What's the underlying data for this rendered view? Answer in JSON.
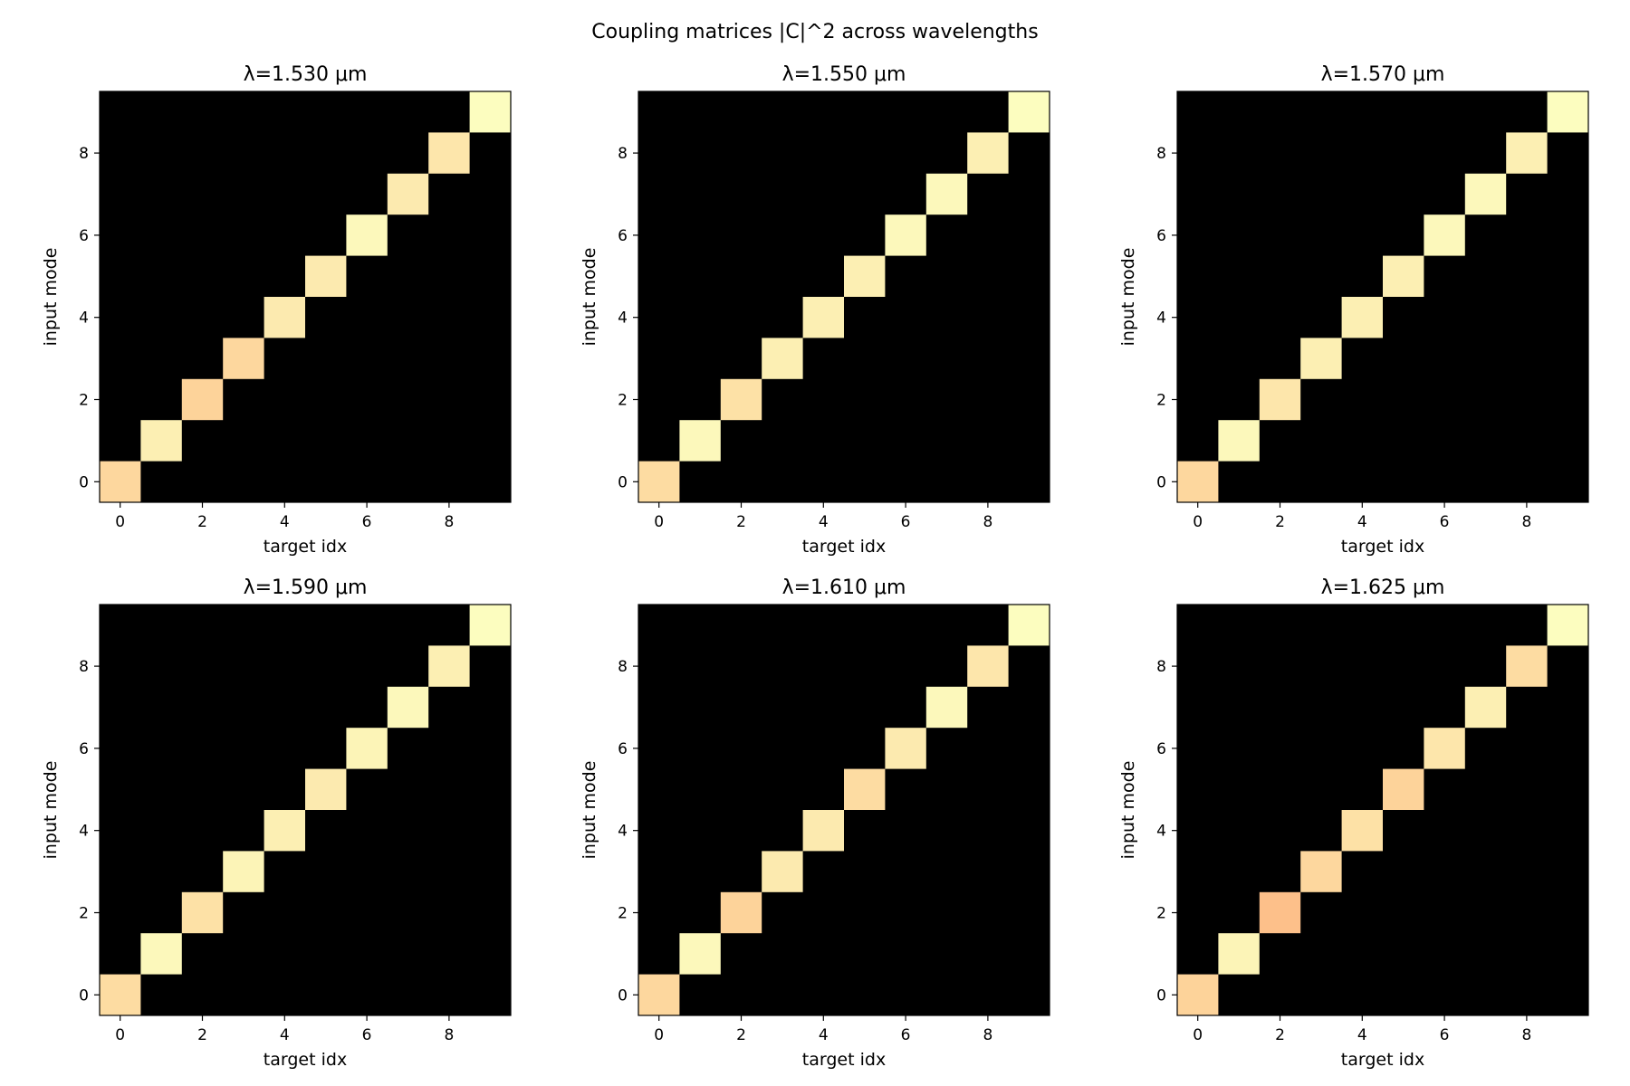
{
  "figure": {
    "title": "Coupling matrices |C|^2 across wavelengths"
  },
  "colormap": {
    "name": "magma",
    "background": "#000000",
    "stops": [
      "#000004",
      "#3b0f70",
      "#8c2981",
      "#de4968",
      "#fe9f6d",
      "#fcfdbf"
    ]
  },
  "chart_data": [
    {
      "type": "heatmap",
      "title": "λ=1.530 μm",
      "xlabel": "target idx",
      "ylabel": "input mode",
      "x_ticks": [
        0,
        2,
        4,
        6,
        8
      ],
      "y_ticks": [
        0,
        2,
        4,
        6,
        8
      ],
      "xlim": [
        -0.5,
        9.5
      ],
      "ylim": [
        -0.5,
        9.5
      ],
      "size": 10,
      "diagonal": [
        0.92,
        0.97,
        0.91,
        0.92,
        0.96,
        0.96,
        0.99,
        0.96,
        0.95,
        1.0
      ]
    },
    {
      "type": "heatmap",
      "title": "λ=1.550 μm",
      "xlabel": "target idx",
      "ylabel": "input mode",
      "x_ticks": [
        0,
        2,
        4,
        6,
        8
      ],
      "y_ticks": [
        0,
        2,
        4,
        6,
        8
      ],
      "xlim": [
        -0.5,
        9.5
      ],
      "ylim": [
        -0.5,
        9.5
      ],
      "size": 10,
      "diagonal": [
        0.93,
        0.99,
        0.94,
        0.97,
        0.97,
        0.97,
        0.99,
        0.99,
        0.97,
        1.0
      ]
    },
    {
      "type": "heatmap",
      "title": "λ=1.570 μm",
      "xlabel": "target idx",
      "ylabel": "input mode",
      "x_ticks": [
        0,
        2,
        4,
        6,
        8
      ],
      "y_ticks": [
        0,
        2,
        4,
        6,
        8
      ],
      "xlim": [
        -0.5,
        9.5
      ],
      "ylim": [
        -0.5,
        9.5
      ],
      "size": 10,
      "diagonal": [
        0.92,
        0.99,
        0.95,
        0.97,
        0.97,
        0.97,
        0.99,
        0.99,
        0.97,
        1.0
      ]
    },
    {
      "type": "heatmap",
      "title": "λ=1.590 μm",
      "xlabel": "target idx",
      "ylabel": "input mode",
      "x_ticks": [
        0,
        2,
        4,
        6,
        8
      ],
      "y_ticks": [
        0,
        2,
        4,
        6,
        8
      ],
      "xlim": [
        -0.5,
        9.5
      ],
      "ylim": [
        -0.5,
        9.5
      ],
      "size": 10,
      "diagonal": [
        0.93,
        0.99,
        0.94,
        0.98,
        0.97,
        0.96,
        0.98,
        0.99,
        0.97,
        1.0
      ]
    },
    {
      "type": "heatmap",
      "title": "λ=1.610 μm",
      "xlabel": "target idx",
      "ylabel": "input mode",
      "x_ticks": [
        0,
        2,
        4,
        6,
        8
      ],
      "y_ticks": [
        0,
        2,
        4,
        6,
        8
      ],
      "xlim": [
        -0.5,
        9.5
      ],
      "ylim": [
        -0.5,
        9.5
      ],
      "size": 10,
      "diagonal": [
        0.92,
        0.99,
        0.91,
        0.96,
        0.96,
        0.93,
        0.96,
        0.99,
        0.95,
        1.0
      ]
    },
    {
      "type": "heatmap",
      "title": "λ=1.625 μm",
      "xlabel": "target idx",
      "ylabel": "input mode",
      "x_ticks": [
        0,
        2,
        4,
        6,
        8
      ],
      "y_ticks": [
        0,
        2,
        4,
        6,
        8
      ],
      "xlim": [
        -0.5,
        9.5
      ],
      "ylim": [
        -0.5,
        9.5
      ],
      "size": 10,
      "diagonal": [
        0.91,
        0.98,
        0.87,
        0.92,
        0.94,
        0.91,
        0.95,
        0.97,
        0.93,
        1.0
      ]
    }
  ]
}
